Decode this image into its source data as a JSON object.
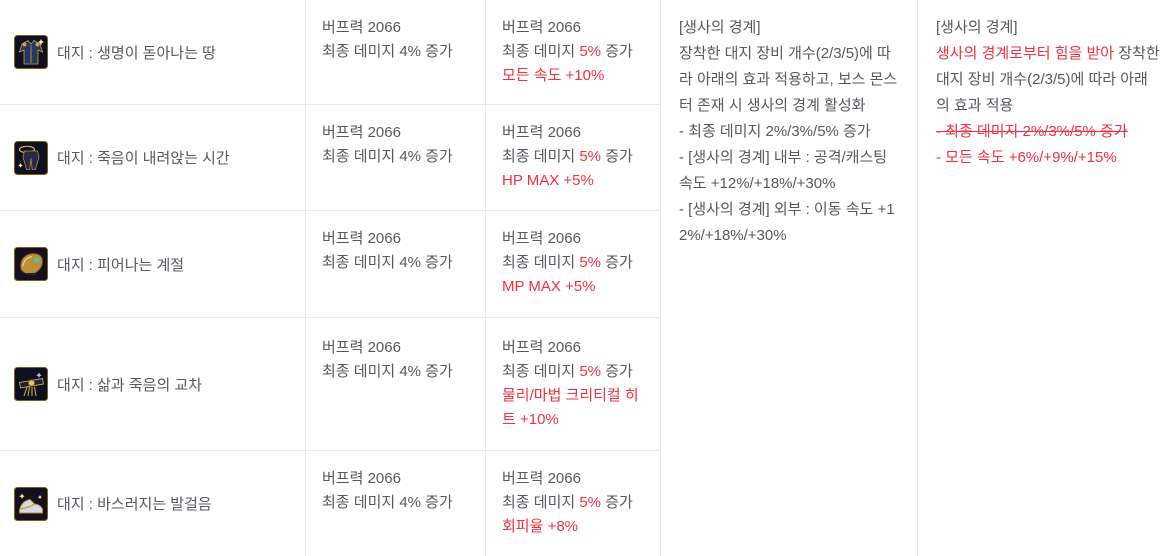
{
  "colors": {
    "text": "#56595f",
    "red": "#f23040",
    "border": "#e7e8ec",
    "background": "#ffffff"
  },
  "table": {
    "rows": [
      {
        "icon": "top-armor-icon",
        "name": "대지 : 생명이 돋아나는 땅",
        "before_lines": [
          "버프력 2066",
          "최종 데미지 4% 증가"
        ],
        "after_lines": [
          "버프력 2066",
          [
            {
              "t": "최종 데미지 "
            },
            {
              "t": "5%",
              "c": "red"
            },
            {
              "t": " 증가"
            }
          ],
          [
            {
              "t": "모든 속도 +10%",
              "c": "red"
            }
          ]
        ]
      },
      {
        "icon": "bottom-armor-icon",
        "name": "대지 : 죽음이 내려앉는 시간",
        "before_lines": [
          "버프력 2066",
          "최종 데미지 4% 증가"
        ],
        "after_lines": [
          "버프력 2066",
          [
            {
              "t": "최종 데미지 "
            },
            {
              "t": "5%",
              "c": "red"
            },
            {
              "t": " 증가"
            }
          ],
          [
            {
              "t": "HP MAX +5%",
              "c": "red"
            }
          ]
        ]
      },
      {
        "icon": "shoulder-armor-icon",
        "name": "대지 : 피어나는 계절",
        "before_lines": [
          "버프력 2066",
          "최종 데미지 4% 증가"
        ],
        "after_lines": [
          "버프력 2066",
          [
            {
              "t": "최종 데미지 "
            },
            {
              "t": "5%",
              "c": "red"
            },
            {
              "t": " 증가"
            }
          ],
          [
            {
              "t": "MP MAX +5%",
              "c": "red"
            }
          ]
        ]
      },
      {
        "icon": "belt-armor-icon",
        "name": "대지 : 삶과 죽음의 교차",
        "before_lines": [
          "버프력 2066",
          "최종 데미지 4% 증가"
        ],
        "after_lines": [
          "버프력 2066",
          [
            {
              "t": "최종 데미지 "
            },
            {
              "t": "5%",
              "c": "red"
            },
            {
              "t": " 증가"
            }
          ],
          [
            {
              "t": "물리/마법 크리티컬 히트 +10%",
              "c": "red"
            }
          ]
        ]
      },
      {
        "icon": "shoes-armor-icon",
        "name": "대지 : 바스러지는 발걸음",
        "before_lines": [
          "버프력 2066",
          "최종 데미지 4% 증가"
        ],
        "after_lines": [
          "버프력 2066",
          [
            {
              "t": "최종 데미지 "
            },
            {
              "t": "5%",
              "c": "red"
            },
            {
              "t": " 증가"
            }
          ],
          [
            {
              "t": "회피율 +8%",
              "c": "red"
            }
          ]
        ]
      }
    ],
    "set_effect_before": {
      "lines": [
        "[생사의 경계]",
        "장착한 대지 장비 개수(2/3/5)에 따라 아래의 효과 적용하고, 보스 몬스터 존재 시 생사의 경계 활성화",
        "- 최종 데미지 2%/3%/5% 증가",
        "- [생사의 경계] 내부 : 공격/캐스팅 속도 +12%/+18%/+30%",
        "- [생사의 경계] 외부 : 이동 속도 +12%/+18%/+30%"
      ]
    },
    "set_effect_after": {
      "lines": [
        "[생사의 경계]",
        [
          {
            "t": "생사의 경계로부터 힘을 받아 ",
            "c": "red"
          },
          {
            "t": "장착한 대지 장비 개수(2/3/5)에 따라 아래의 효과 적용"
          }
        ],
        [
          {
            "t": "- 최종 데미지 2%/3%/5% 증가",
            "c": "red",
            "s": true
          }
        ],
        [
          {
            "t": "- 모든 속도 +6%/+9%/+15%",
            "c": "red"
          }
        ]
      ]
    }
  }
}
